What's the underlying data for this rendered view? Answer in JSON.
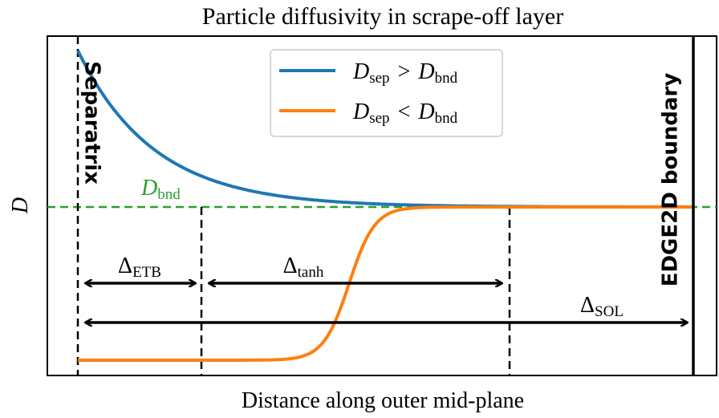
{
  "title": "Particle diffusivity in scrape-off layer",
  "x_label": "Distance along outer mid-plane",
  "y_label": "D",
  "legend": [
    {
      "base": "D",
      "sub": "sep",
      "op": ">",
      "base2": "D",
      "sub2": "bnd"
    },
    {
      "base": "D",
      "sub": "sep",
      "op": "<",
      "base2": "D",
      "sub2": "bnd"
    }
  ],
  "separatrix_label": "Separatrix",
  "boundary_label": "EDGE2D boundary",
  "bnd_label": {
    "base": "D",
    "sub": "bnd"
  },
  "widths": [
    {
      "base": "Δ",
      "sub": "ETB"
    },
    {
      "base": "Δ",
      "sub": "tanh"
    },
    {
      "base": "Δ",
      "sub": "SOL"
    }
  ]
}
